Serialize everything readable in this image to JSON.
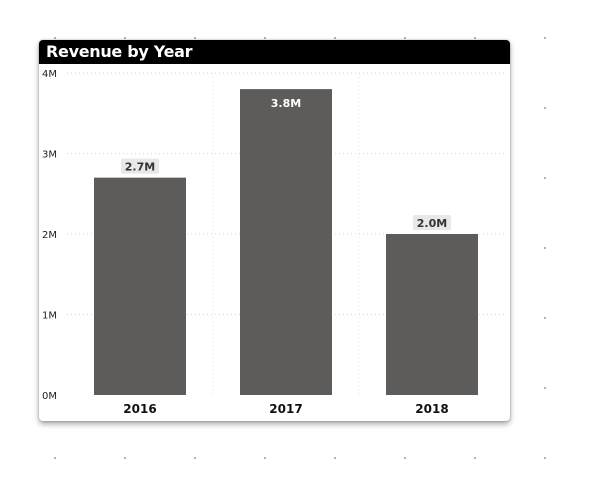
{
  "chart_data": {
    "type": "bar",
    "title": "Revenue by Year",
    "categories": [
      "2016",
      "2017",
      "2018"
    ],
    "values": [
      2.7,
      3.8,
      2.0
    ],
    "data_labels": [
      "2.7M",
      "3.8M",
      "2.0M"
    ],
    "label_inside": [
      false,
      true,
      false
    ],
    "y_ticks": [
      "0M",
      "1M",
      "2M",
      "3M",
      "4M"
    ],
    "ylim": [
      0,
      4
    ],
    "xlabel": "",
    "ylabel": "",
    "grid": true,
    "bar_color": "#5e5c5a",
    "label_bg_color": "#e8e8e8"
  }
}
